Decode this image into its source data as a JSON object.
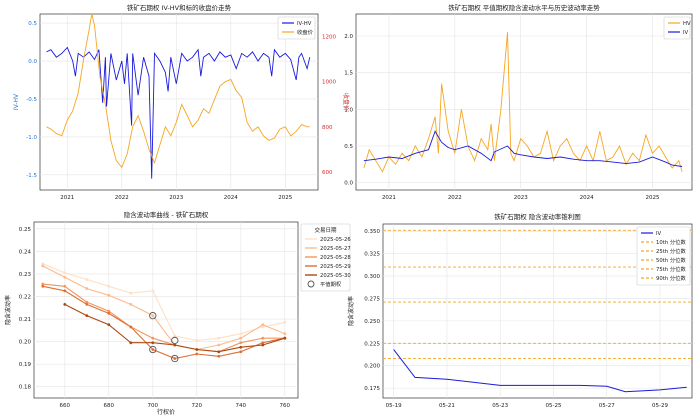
{
  "chart_data": [
    {
      "type": "line",
      "title": "铁矿石期权 IV-HV和标的收盘价走势",
      "ylabel": "IV-HV",
      "ylabel_right": "收盘价",
      "xticks": [
        "2021",
        "2022",
        "2023",
        "2024",
        "2025"
      ],
      "yticks_left": [
        "-1.5",
        "-1.0",
        "-0.5",
        "0.0",
        "0.5"
      ],
      "yticks_right": [
        "600",
        "800",
        "1000",
        "1200"
      ],
      "ylim": [
        -1.7,
        0.62
      ],
      "ylim_right": [
        520,
        1300
      ],
      "legend": "top-right",
      "grid": true,
      "series": [
        {
          "name": "IV-HV",
          "color": "#1a1adb",
          "x": [
            2020.62,
            2020.7,
            2020.8,
            2020.9,
            2021.0,
            2021.1,
            2021.15,
            2021.2,
            2021.3,
            2021.4,
            2021.5,
            2021.58,
            2021.65,
            2021.7,
            2021.72,
            2021.8,
            2021.9,
            2022.0,
            2022.05,
            2022.1,
            2022.18,
            2022.2,
            2022.3,
            2022.4,
            2022.5,
            2022.55,
            2022.6,
            2022.7,
            2022.8,
            2022.85,
            2022.9,
            2023.0,
            2023.1,
            2023.2,
            2023.3,
            2023.4,
            2023.45,
            2023.5,
            2023.6,
            2023.7,
            2023.8,
            2023.9,
            2024.0,
            2024.1,
            2024.2,
            2024.3,
            2024.4,
            2024.5,
            2024.6,
            2024.7,
            2024.75,
            2024.8,
            2024.9,
            2025.0,
            2025.1,
            2025.2,
            2025.25,
            2025.3,
            2025.4,
            2025.45
          ],
          "values": [
            0.12,
            0.15,
            0.05,
            0.1,
            0.18,
            0.0,
            -0.2,
            0.1,
            0.05,
            0.12,
            0.02,
            0.15,
            -0.55,
            0.05,
            -0.6,
            0.1,
            -0.25,
            0.0,
            -0.3,
            0.1,
            -0.85,
            0.1,
            -0.45,
            0.05,
            -0.2,
            -1.55,
            0.1,
            0.0,
            -0.15,
            -0.4,
            0.05,
            -0.3,
            0.1,
            0.0,
            0.05,
            0.15,
            -0.2,
            0.05,
            0.1,
            0.0,
            0.12,
            0.05,
            0.08,
            -0.1,
            0.1,
            0.05,
            0.12,
            0.0,
            0.1,
            0.05,
            -0.2,
            0.15,
            0.05,
            0.1,
            0.02,
            -0.25,
            0.05,
            0.1,
            -0.1,
            0.05
          ]
        },
        {
          "name": "收盘价",
          "color": "#f5a623",
          "axis": "right",
          "x": [
            2020.62,
            2020.7,
            2020.8,
            2020.9,
            2021.0,
            2021.1,
            2021.2,
            2021.3,
            2021.4,
            2021.45,
            2021.5,
            2021.6,
            2021.7,
            2021.8,
            2021.9,
            2022.0,
            2022.1,
            2022.2,
            2022.3,
            2022.4,
            2022.5,
            2022.6,
            2022.7,
            2022.8,
            2022.9,
            2023.0,
            2023.1,
            2023.2,
            2023.3,
            2023.4,
            2023.5,
            2023.6,
            2023.7,
            2023.8,
            2023.9,
            2024.0,
            2024.1,
            2024.2,
            2024.3,
            2024.4,
            2024.5,
            2024.6,
            2024.7,
            2024.8,
            2024.9,
            2025.0,
            2025.1,
            2025.2,
            2025.3,
            2025.4,
            2025.45
          ],
          "values": [
            800,
            790,
            770,
            760,
            830,
            870,
            950,
            1100,
            1230,
            1300,
            1250,
            1020,
            900,
            740,
            650,
            620,
            680,
            800,
            850,
            780,
            700,
            640,
            720,
            800,
            760,
            820,
            900,
            850,
            800,
            830,
            880,
            860,
            920,
            980,
            1000,
            1010,
            960,
            930,
            820,
            780,
            800,
            760,
            740,
            750,
            790,
            800,
            760,
            780,
            810,
            800,
            800
          ]
        }
      ]
    },
    {
      "type": "line",
      "title": "铁矿石期权 平值期权隐含波动水平与历史波动率走势",
      "xticks": [
        "2021",
        "2022",
        "2023",
        "2024",
        "2025"
      ],
      "yticks": [
        "0.0",
        "0.5",
        "1.0",
        "1.5",
        "2.0"
      ],
      "ylim": [
        -0.1,
        2.3
      ],
      "legend": "top-right",
      "grid": true,
      "series": [
        {
          "name": "HV",
          "color": "#f5a623",
          "x": [
            2020.62,
            2020.7,
            2020.8,
            2020.9,
            2021.0,
            2021.1,
            2021.2,
            2021.3,
            2021.4,
            2021.5,
            2021.6,
            2021.7,
            2021.75,
            2021.8,
            2021.9,
            2022.0,
            2022.1,
            2022.2,
            2022.3,
            2022.4,
            2022.5,
            2022.55,
            2022.6,
            2022.7,
            2022.8,
            2022.85,
            2022.9,
            2023.0,
            2023.1,
            2023.2,
            2023.3,
            2023.4,
            2023.5,
            2023.6,
            2023.7,
            2023.8,
            2023.9,
            2024.0,
            2024.1,
            2024.2,
            2024.3,
            2024.4,
            2024.5,
            2024.6,
            2024.7,
            2024.8,
            2024.9,
            2025.0,
            2025.1,
            2025.2,
            2025.3,
            2025.4,
            2025.45
          ],
          "values": [
            0.2,
            0.45,
            0.3,
            0.15,
            0.35,
            0.25,
            0.4,
            0.3,
            0.5,
            0.35,
            0.6,
            0.9,
            0.4,
            1.35,
            0.7,
            0.4,
            1.0,
            0.5,
            0.3,
            0.6,
            0.45,
            0.8,
            0.3,
            1.0,
            2.05,
            0.4,
            0.3,
            0.6,
            0.5,
            0.35,
            0.4,
            0.7,
            0.3,
            0.5,
            0.6,
            0.4,
            0.3,
            0.5,
            0.3,
            0.7,
            0.3,
            0.35,
            0.5,
            0.25,
            0.4,
            0.3,
            0.65,
            0.4,
            0.5,
            0.35,
            0.2,
            0.3,
            0.15
          ]
        },
        {
          "name": "IV",
          "color": "#1a1adb",
          "x": [
            2020.62,
            2020.8,
            2021.0,
            2021.2,
            2021.4,
            2021.6,
            2021.7,
            2021.8,
            2021.9,
            2022.0,
            2022.2,
            2022.4,
            2022.55,
            2022.6,
            2022.8,
            2022.9,
            2023.0,
            2023.2,
            2023.4,
            2023.6,
            2023.8,
            2024.0,
            2024.2,
            2024.4,
            2024.6,
            2024.8,
            2025.0,
            2025.2,
            2025.3,
            2025.45
          ],
          "values": [
            0.3,
            0.32,
            0.35,
            0.33,
            0.4,
            0.45,
            0.7,
            0.55,
            0.48,
            0.45,
            0.5,
            0.4,
            0.3,
            0.42,
            0.5,
            0.4,
            0.38,
            0.35,
            0.33,
            0.35,
            0.32,
            0.3,
            0.3,
            0.28,
            0.26,
            0.28,
            0.35,
            0.28,
            0.24,
            0.22
          ]
        }
      ]
    },
    {
      "type": "line",
      "title": "隐含波动率曲线 - 铁矿石期权",
      "xlabel": "行权价",
      "ylabel": "隐含波动率",
      "xticks": [
        "660",
        "680",
        "700",
        "720",
        "740",
        "760"
      ],
      "yticks": [
        "0.18",
        "0.19",
        "0.20",
        "0.21",
        "0.22",
        "0.23",
        "0.24",
        "0.25"
      ],
      "xlim": [
        646,
        766
      ],
      "ylim": [
        0.175,
        0.253
      ],
      "legend_title": "交易日期",
      "legend": "right",
      "grid": true,
      "x": [
        650,
        660,
        670,
        680,
        690,
        700,
        710,
        720,
        730,
        740,
        750,
        760
      ],
      "series": [
        {
          "name": "2025-05-26",
          "color": "#fde0c5",
          "values": [
            0.2345,
            0.2305,
            0.2275,
            0.2245,
            0.2215,
            0.2225,
            0.2025,
            0.2005,
            0.2015,
            0.2035,
            0.2065,
            0.2085
          ]
        },
        {
          "name": "2025-05-27",
          "color": "#fcbb8e",
          "values": [
            0.2335,
            0.2285,
            0.2235,
            0.2205,
            0.2165,
            0.2115,
            0.1985,
            0.1965,
            0.1985,
            0.2015,
            0.2075,
            0.2035
          ]
        },
        {
          "name": "2025-05-28",
          "color": "#f4955c",
          "values": [
            0.2255,
            0.2245,
            0.2175,
            0.2135,
            0.2065,
            0.2015,
            0.1985,
            0.1965,
            0.1955,
            0.1995,
            0.2015,
            0.2015
          ]
        },
        {
          "name": "2025-05-29",
          "color": "#de7035",
          "values": [
            0.2245,
            0.2225,
            0.2165,
            0.2125,
            0.2065,
            0.1965,
            0.1925,
            0.1945,
            0.1935,
            0.1955,
            0.1995,
            0.2015
          ]
        },
        {
          "name": "2025-05-30",
          "color": "#a84a16",
          "values": [
            null,
            0.2165,
            0.2115,
            0.2075,
            0.1995,
            0.1995,
            0.1985,
            0.1965,
            0.1955,
            0.1975,
            0.1985,
            0.2015
          ]
        }
      ],
      "atm_label": "平值期权",
      "atm_points": [
        [
          700,
          0.2115
        ],
        [
          710,
          0.2005
        ],
        [
          700,
          0.1965
        ],
        [
          710,
          0.1925
        ]
      ]
    },
    {
      "type": "line",
      "title": "铁矿石期权 隐含波动率锥利图",
      "ylabel": "隐含波动率",
      "xticks": [
        "05-19",
        "05-21",
        "05-23",
        "05-25",
        "05-27",
        "05-29"
      ],
      "yticks": [
        "0.175",
        "0.200",
        "0.225",
        "0.250",
        "0.275",
        "0.300",
        "0.325",
        "0.350"
      ],
      "xlim": [
        18.6,
        30.2
      ],
      "ylim": [
        0.164,
        0.358
      ],
      "legend": "top-right",
      "grid": true,
      "series": [
        {
          "name": "IV",
          "color": "#1a1adb",
          "x": [
            19,
            19.8,
            21,
            23,
            25,
            26,
            27,
            27.7,
            29,
            30
          ],
          "values": [
            0.218,
            0.187,
            0.185,
            0.178,
            0.178,
            0.178,
            0.177,
            0.171,
            0.173,
            0.176
          ]
        }
      ],
      "quantiles": [
        {
          "name": "10th 分位数",
          "value": 0.208
        },
        {
          "name": "25th 分位数",
          "value": 0.225
        },
        {
          "name": "50th 分位数",
          "value": 0.271
        },
        {
          "name": "75th 分位数",
          "value": 0.31
        },
        {
          "name": "90th 分位数",
          "value": 0.351
        }
      ],
      "quantile_color": "#f5a623"
    }
  ]
}
